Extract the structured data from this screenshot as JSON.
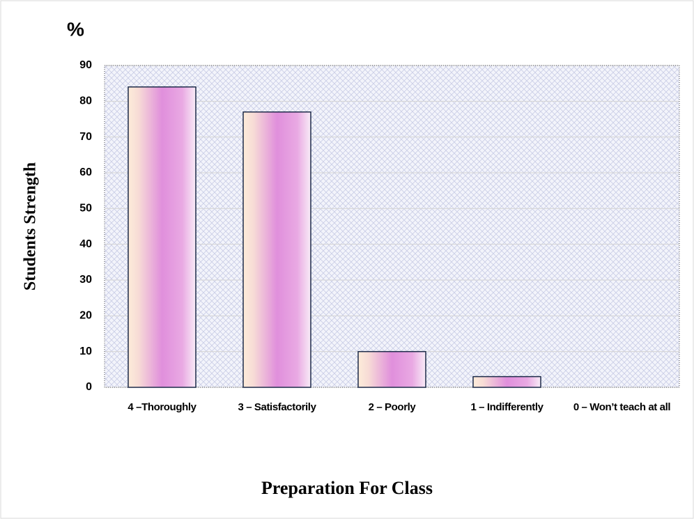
{
  "chart_data": {
    "type": "bar",
    "title": "%",
    "y_label": "Students Strength",
    "x_label": "Preparation For Class",
    "categories": [
      "4 –Thoroughly",
      "3 – Satisfactorily",
      "2 – Poorly",
      "1 – Indifferently",
      "0 – Won’t teach at all"
    ],
    "values": [
      84,
      77,
      10,
      3,
      0
    ],
    "color": "#e08fdc",
    "ylim": [
      0,
      90
    ],
    "yticks": [
      0,
      10,
      20,
      30,
      40,
      50,
      60,
      70,
      80,
      90
    ],
    "grid": true
  }
}
